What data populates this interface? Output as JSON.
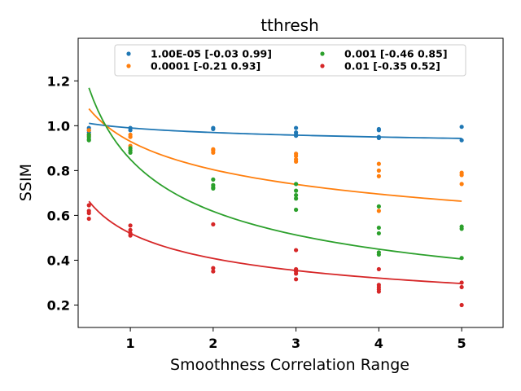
{
  "chart_data": {
    "type": "scatter",
    "title": "tthresh",
    "xlabel": "Smoothness Correlation Range",
    "ylabel": "SSIM",
    "xlim": [
      0.37,
      5.5
    ],
    "ylim": [
      0.1,
      1.39
    ],
    "xticks": [
      1,
      2,
      3,
      4,
      5
    ],
    "yticks": [
      0.2,
      0.4,
      0.6,
      0.8,
      1.0,
      1.2
    ],
    "xtick_labels": [
      "1",
      "2",
      "3",
      "4",
      "5"
    ],
    "ytick_labels": [
      "0.2",
      "0.4",
      "0.6",
      "0.8",
      "1.0",
      "1.2"
    ],
    "grid": false,
    "legend_position": "top-center",
    "series": [
      {
        "name": "1.00E-05 [-0.03  0.99]",
        "color": "#1f77b4",
        "fit": {
          "a": 0.99,
          "b": -0.03
        },
        "points": [
          [
            0.5,
            0.99
          ],
          [
            0.5,
            0.98
          ],
          [
            0.5,
            0.97
          ],
          [
            1,
            0.99
          ],
          [
            1,
            0.98
          ],
          [
            2,
            0.99
          ],
          [
            2,
            0.985
          ],
          [
            3,
            0.99
          ],
          [
            3,
            0.97
          ],
          [
            3,
            0.96
          ],
          [
            3,
            0.955
          ],
          [
            4,
            0.985
          ],
          [
            4,
            0.98
          ],
          [
            4,
            0.95
          ],
          [
            4,
            0.945
          ],
          [
            5,
            0.995
          ],
          [
            5,
            0.935
          ]
        ]
      },
      {
        "name": "0.0001 [-0.21  0.93]",
        "color": "#ff7f0e",
        "fit": {
          "a": 0.93,
          "b": -0.21
        },
        "points": [
          [
            0.5,
            0.98
          ],
          [
            0.5,
            0.96
          ],
          [
            0.5,
            0.955
          ],
          [
            1,
            0.96
          ],
          [
            1,
            0.95
          ],
          [
            1,
            0.91
          ],
          [
            2,
            0.895
          ],
          [
            2,
            0.89
          ],
          [
            2,
            0.88
          ],
          [
            3,
            0.875
          ],
          [
            3,
            0.865
          ],
          [
            3,
            0.85
          ],
          [
            3,
            0.84
          ],
          [
            4,
            0.83
          ],
          [
            4,
            0.8
          ],
          [
            4,
            0.775
          ],
          [
            4,
            0.62
          ],
          [
            5,
            0.79
          ],
          [
            5,
            0.78
          ],
          [
            5,
            0.74
          ]
        ]
      },
      {
        "name": "0.001 [-0.46  0.85]",
        "color": "#2ca02c",
        "fit": {
          "a": 0.85,
          "b": -0.46
        },
        "points": [
          [
            0.5,
            0.96
          ],
          [
            0.5,
            0.95
          ],
          [
            0.5,
            0.94
          ],
          [
            0.5,
            0.935
          ],
          [
            1,
            0.9
          ],
          [
            1,
            0.89
          ],
          [
            1,
            0.88
          ],
          [
            2,
            0.76
          ],
          [
            2,
            0.735
          ],
          [
            2,
            0.725
          ],
          [
            2,
            0.72
          ],
          [
            3,
            0.74
          ],
          [
            3,
            0.71
          ],
          [
            3,
            0.69
          ],
          [
            3,
            0.675
          ],
          [
            3,
            0.625
          ],
          [
            4,
            0.64
          ],
          [
            4,
            0.545
          ],
          [
            4,
            0.52
          ],
          [
            4,
            0.435
          ],
          [
            4,
            0.425
          ],
          [
            5,
            0.55
          ],
          [
            5,
            0.54
          ],
          [
            5,
            0.41
          ]
        ]
      },
      {
        "name": "0.01 [-0.35  0.52]",
        "color": "#d62728",
        "fit": {
          "a": 0.52,
          "b": -0.35
        },
        "points": [
          [
            0.5,
            0.645
          ],
          [
            0.5,
            0.62
          ],
          [
            0.5,
            0.61
          ],
          [
            0.5,
            0.585
          ],
          [
            1,
            0.555
          ],
          [
            1,
            0.535
          ],
          [
            1,
            0.52
          ],
          [
            1,
            0.51
          ],
          [
            2,
            0.56
          ],
          [
            2,
            0.365
          ],
          [
            2,
            0.35
          ],
          [
            3,
            0.445
          ],
          [
            3,
            0.36
          ],
          [
            3,
            0.35
          ],
          [
            3,
            0.34
          ],
          [
            3,
            0.315
          ],
          [
            4,
            0.36
          ],
          [
            4,
            0.29
          ],
          [
            4,
            0.28
          ],
          [
            4,
            0.27
          ],
          [
            4,
            0.26
          ],
          [
            5,
            0.3
          ],
          [
            5,
            0.28
          ],
          [
            5,
            0.2
          ]
        ]
      }
    ]
  }
}
